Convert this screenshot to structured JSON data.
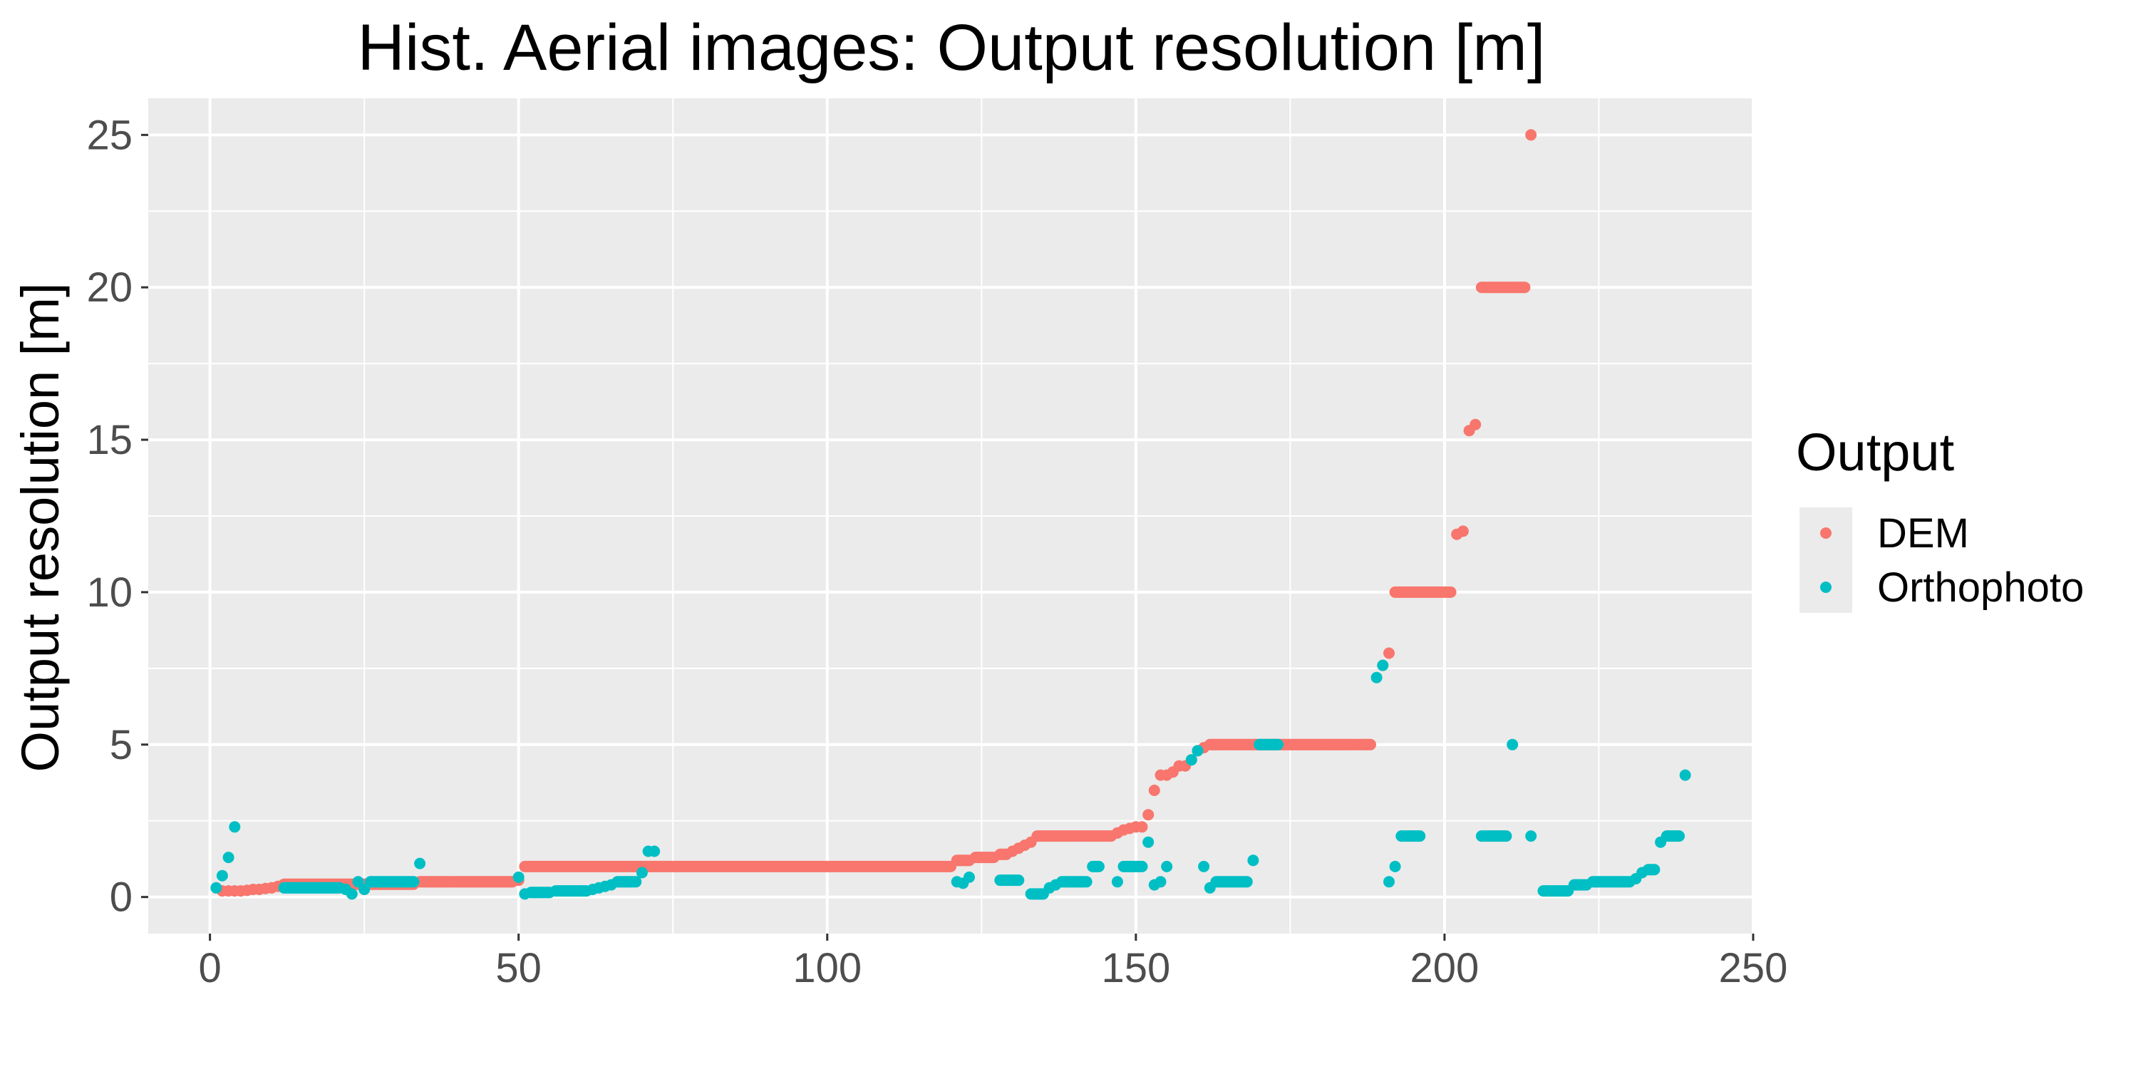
{
  "chart_data": {
    "type": "scatter",
    "title": "Hist. Aerial images: Output resolution [m]",
    "xlabel": "",
    "ylabel": "Output resolution [m]",
    "xlim": [
      -10,
      250
    ],
    "ylim": [
      -1.2,
      26.2
    ],
    "xticks": [
      0,
      50,
      100,
      150,
      200,
      250
    ],
    "yticks": [
      0,
      5,
      10,
      15,
      20,
      25
    ],
    "grid": true,
    "legend": {
      "title": "Output",
      "position": "right"
    },
    "series": [
      {
        "name": "DEM",
        "color": "#F8766D",
        "runs": [
          [
            2,
            0.2
          ],
          [
            3,
            0.2
          ],
          [
            4,
            0.2
          ],
          [
            5,
            0.2
          ],
          [
            6,
            0.22
          ],
          [
            7,
            0.25
          ],
          [
            8,
            0.25
          ],
          [
            9,
            0.28
          ],
          [
            10,
            0.3
          ],
          [
            11,
            0.35
          ],
          [
            12,
            0.42,
            33
          ],
          [
            34,
            0.5,
            49
          ],
          [
            50,
            0.55
          ],
          [
            51,
            1.0,
            120
          ],
          [
            121,
            1.2,
            123
          ],
          [
            124,
            1.3,
            127
          ],
          [
            128,
            1.4,
            129
          ],
          [
            130,
            1.5
          ],
          [
            131,
            1.6
          ],
          [
            132,
            1.7
          ],
          [
            133,
            1.8
          ],
          [
            134,
            2.0,
            146
          ],
          [
            147,
            2.1
          ],
          [
            148,
            2.2
          ],
          [
            149,
            2.25
          ],
          [
            150,
            2.3
          ],
          [
            151,
            2.3
          ],
          [
            152,
            2.7
          ],
          [
            153,
            3.5
          ],
          [
            154,
            4.0
          ],
          [
            155,
            4.0
          ],
          [
            156,
            4.1
          ],
          [
            157,
            4.3
          ],
          [
            158,
            4.3
          ],
          [
            159,
            4.5
          ],
          [
            160,
            4.8
          ],
          [
            161,
            4.9
          ],
          [
            162,
            5.0,
            188
          ],
          [
            190,
            7.6
          ],
          [
            191,
            8.0
          ],
          [
            192,
            10.0,
            201
          ],
          [
            202,
            11.9
          ],
          [
            203,
            12.0
          ],
          [
            204,
            15.3
          ],
          [
            205,
            15.5
          ],
          [
            206,
            20.0,
            213
          ],
          [
            214,
            25.0
          ]
        ]
      },
      {
        "name": "Orthophoto",
        "color": "#00BFC4",
        "runs": [
          [
            1,
            0.3
          ],
          [
            2,
            0.7
          ],
          [
            3,
            1.3
          ],
          [
            4,
            2.3
          ],
          [
            12,
            0.3,
            21
          ],
          [
            22,
            0.25
          ],
          [
            23,
            0.1
          ],
          [
            24,
            0.5
          ],
          [
            25,
            0.25
          ],
          [
            26,
            0.5,
            33
          ],
          [
            34,
            1.1
          ],
          [
            50,
            0.65
          ],
          [
            51,
            0.1
          ],
          [
            52,
            0.15,
            55
          ],
          [
            56,
            0.2,
            61
          ],
          [
            62,
            0.25
          ],
          [
            63,
            0.3
          ],
          [
            64,
            0.35
          ],
          [
            65,
            0.4
          ],
          [
            66,
            0.5,
            69
          ],
          [
            70,
            0.8
          ],
          [
            71,
            1.5
          ],
          [
            72,
            1.5
          ],
          [
            121,
            0.5
          ],
          [
            122,
            0.45
          ],
          [
            123,
            0.65
          ],
          [
            128,
            0.55,
            131
          ],
          [
            133,
            0.1,
            135
          ],
          [
            136,
            0.3
          ],
          [
            137,
            0.4
          ],
          [
            138,
            0.5,
            142
          ],
          [
            143,
            1.0,
            144
          ],
          [
            147,
            0.5
          ],
          [
            148,
            1.0,
            151
          ],
          [
            152,
            1.8
          ],
          [
            153,
            0.4
          ],
          [
            154,
            0.5
          ],
          [
            155,
            1.0
          ],
          [
            159,
            4.5
          ],
          [
            160,
            4.8
          ],
          [
            161,
            1.0
          ],
          [
            162,
            0.3
          ],
          [
            163,
            0.5,
            168
          ],
          [
            169,
            1.2
          ],
          [
            170,
            5.0,
            173
          ],
          [
            189,
            7.2
          ],
          [
            190,
            7.6
          ],
          [
            191,
            0.5
          ],
          [
            192,
            1.0
          ],
          [
            193,
            2.0,
            196
          ],
          [
            206,
            2.0,
            210
          ],
          [
            211,
            5.0
          ],
          [
            214,
            2.0
          ],
          [
            216,
            0.2,
            220
          ],
          [
            221,
            0.4,
            223
          ],
          [
            224,
            0.5,
            230
          ],
          [
            231,
            0.6
          ],
          [
            232,
            0.8
          ],
          [
            233,
            0.9,
            234
          ],
          [
            235,
            1.8
          ],
          [
            236,
            2.0,
            238
          ],
          [
            239,
            4.0
          ]
        ]
      }
    ]
  }
}
